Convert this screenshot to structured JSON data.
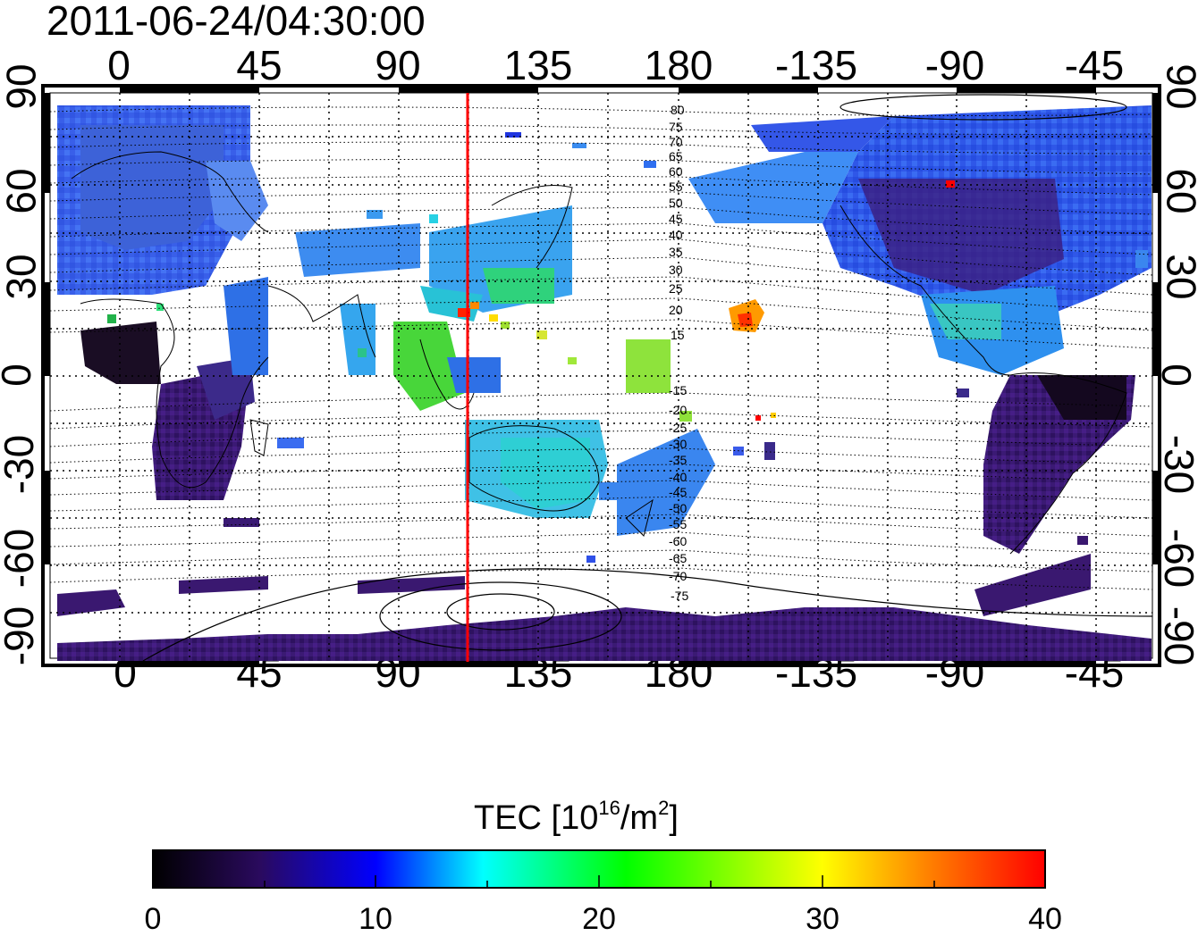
{
  "timestamp": "2011-06-24/04:30:00",
  "top_axis_ticks": [
    "0",
    "45",
    "90",
    "135",
    "180",
    "-135",
    "-90",
    "-45"
  ],
  "bottom_axis_ticks": [
    "0",
    "45",
    "90",
    "135",
    "180",
    "-135",
    "-90",
    "-45"
  ],
  "left_axis_ticks": [
    "90",
    "60",
    "30",
    "0",
    "-30",
    "-60",
    "-90"
  ],
  "right_axis_ticks": [
    "90",
    "60",
    "30",
    "0",
    "-30",
    "-60",
    "-90"
  ],
  "contour_labels_north": [
    "80",
    "75",
    "70",
    "65",
    "60",
    "55",
    "50",
    "45",
    "40",
    "35",
    "30",
    "25",
    "20",
    "15"
  ],
  "contour_labels_south": [
    "-15",
    "-20",
    "-25",
    "-30",
    "-35",
    "-40",
    "-45",
    "-50",
    "-55",
    "-60",
    "-65",
    "-70",
    "-75"
  ],
  "colorbar": {
    "title_prefix": "TEC  [10",
    "title_exp": "16",
    "title_unit": "/m",
    "title_unit_exp": "2",
    "title_suffix": "]",
    "min": 0,
    "max": 40,
    "ticks": [
      "0",
      "10",
      "20",
      "30",
      "40"
    ],
    "colors": [
      "#000000",
      "#3a0c7a",
      "#0000ff",
      "#00ffff",
      "#00ff00",
      "#ffff00",
      "#ff0000"
    ]
  },
  "marker_line": {
    "longitude": 111,
    "color": "#ff0000"
  }
}
